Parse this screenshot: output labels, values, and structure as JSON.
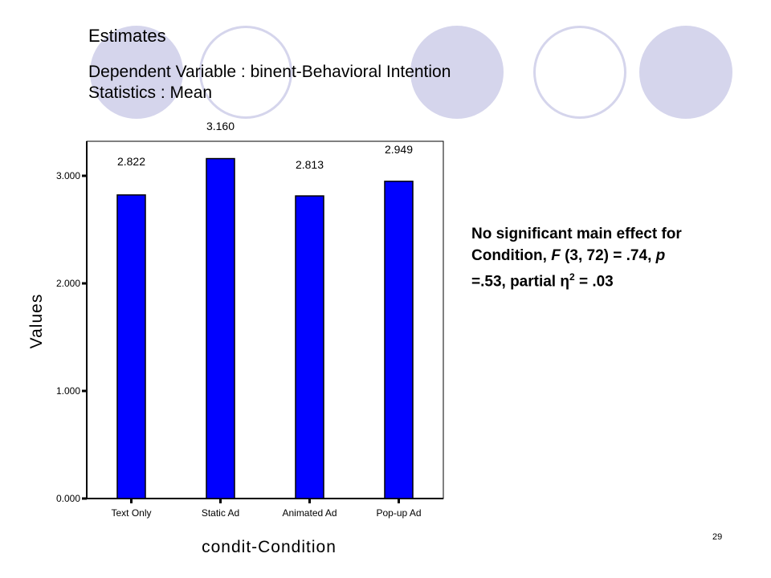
{
  "slide": {
    "title": "Estimates",
    "subtitle_line1": "Dependent Variable : binent-Behavioral Intention",
    "subtitle_line2": "Statistics : Mean",
    "annotation_line1": "No significant main effect for",
    "annotation_line2_a": "Condition, ",
    "annotation_line2_f": "F",
    "annotation_line2_b": " (3, 72) = .74, ",
    "annotation_line2_p": "p",
    "annotation_line3_a": "=.53, partial η",
    "annotation_line3_sup": "2",
    "annotation_line3_b": " = .03",
    "page_number": "29",
    "decor_color_filled": "#d5d5ec",
    "decor_color_outline": "#d5d5ec"
  },
  "chart_data": {
    "type": "bar",
    "categories": [
      "Text Only",
      "Static Ad",
      "Animated Ad",
      "Pop-up Ad"
    ],
    "values": [
      2.822,
      3.16,
      2.813,
      2.949
    ],
    "data_labels": [
      "2.822",
      "3.160",
      "2.813",
      "2.949"
    ],
    "ylabel": "Values",
    "xlabel": "condit-Condition",
    "yticks": [
      0,
      1,
      2,
      3
    ],
    "ytick_labels": [
      "0.000",
      "1.000",
      "2.000",
      "3.000"
    ],
    "ylim": [
      0,
      3.3
    ],
    "bar_color": "#0000ff",
    "grid": false,
    "legend": "none"
  }
}
